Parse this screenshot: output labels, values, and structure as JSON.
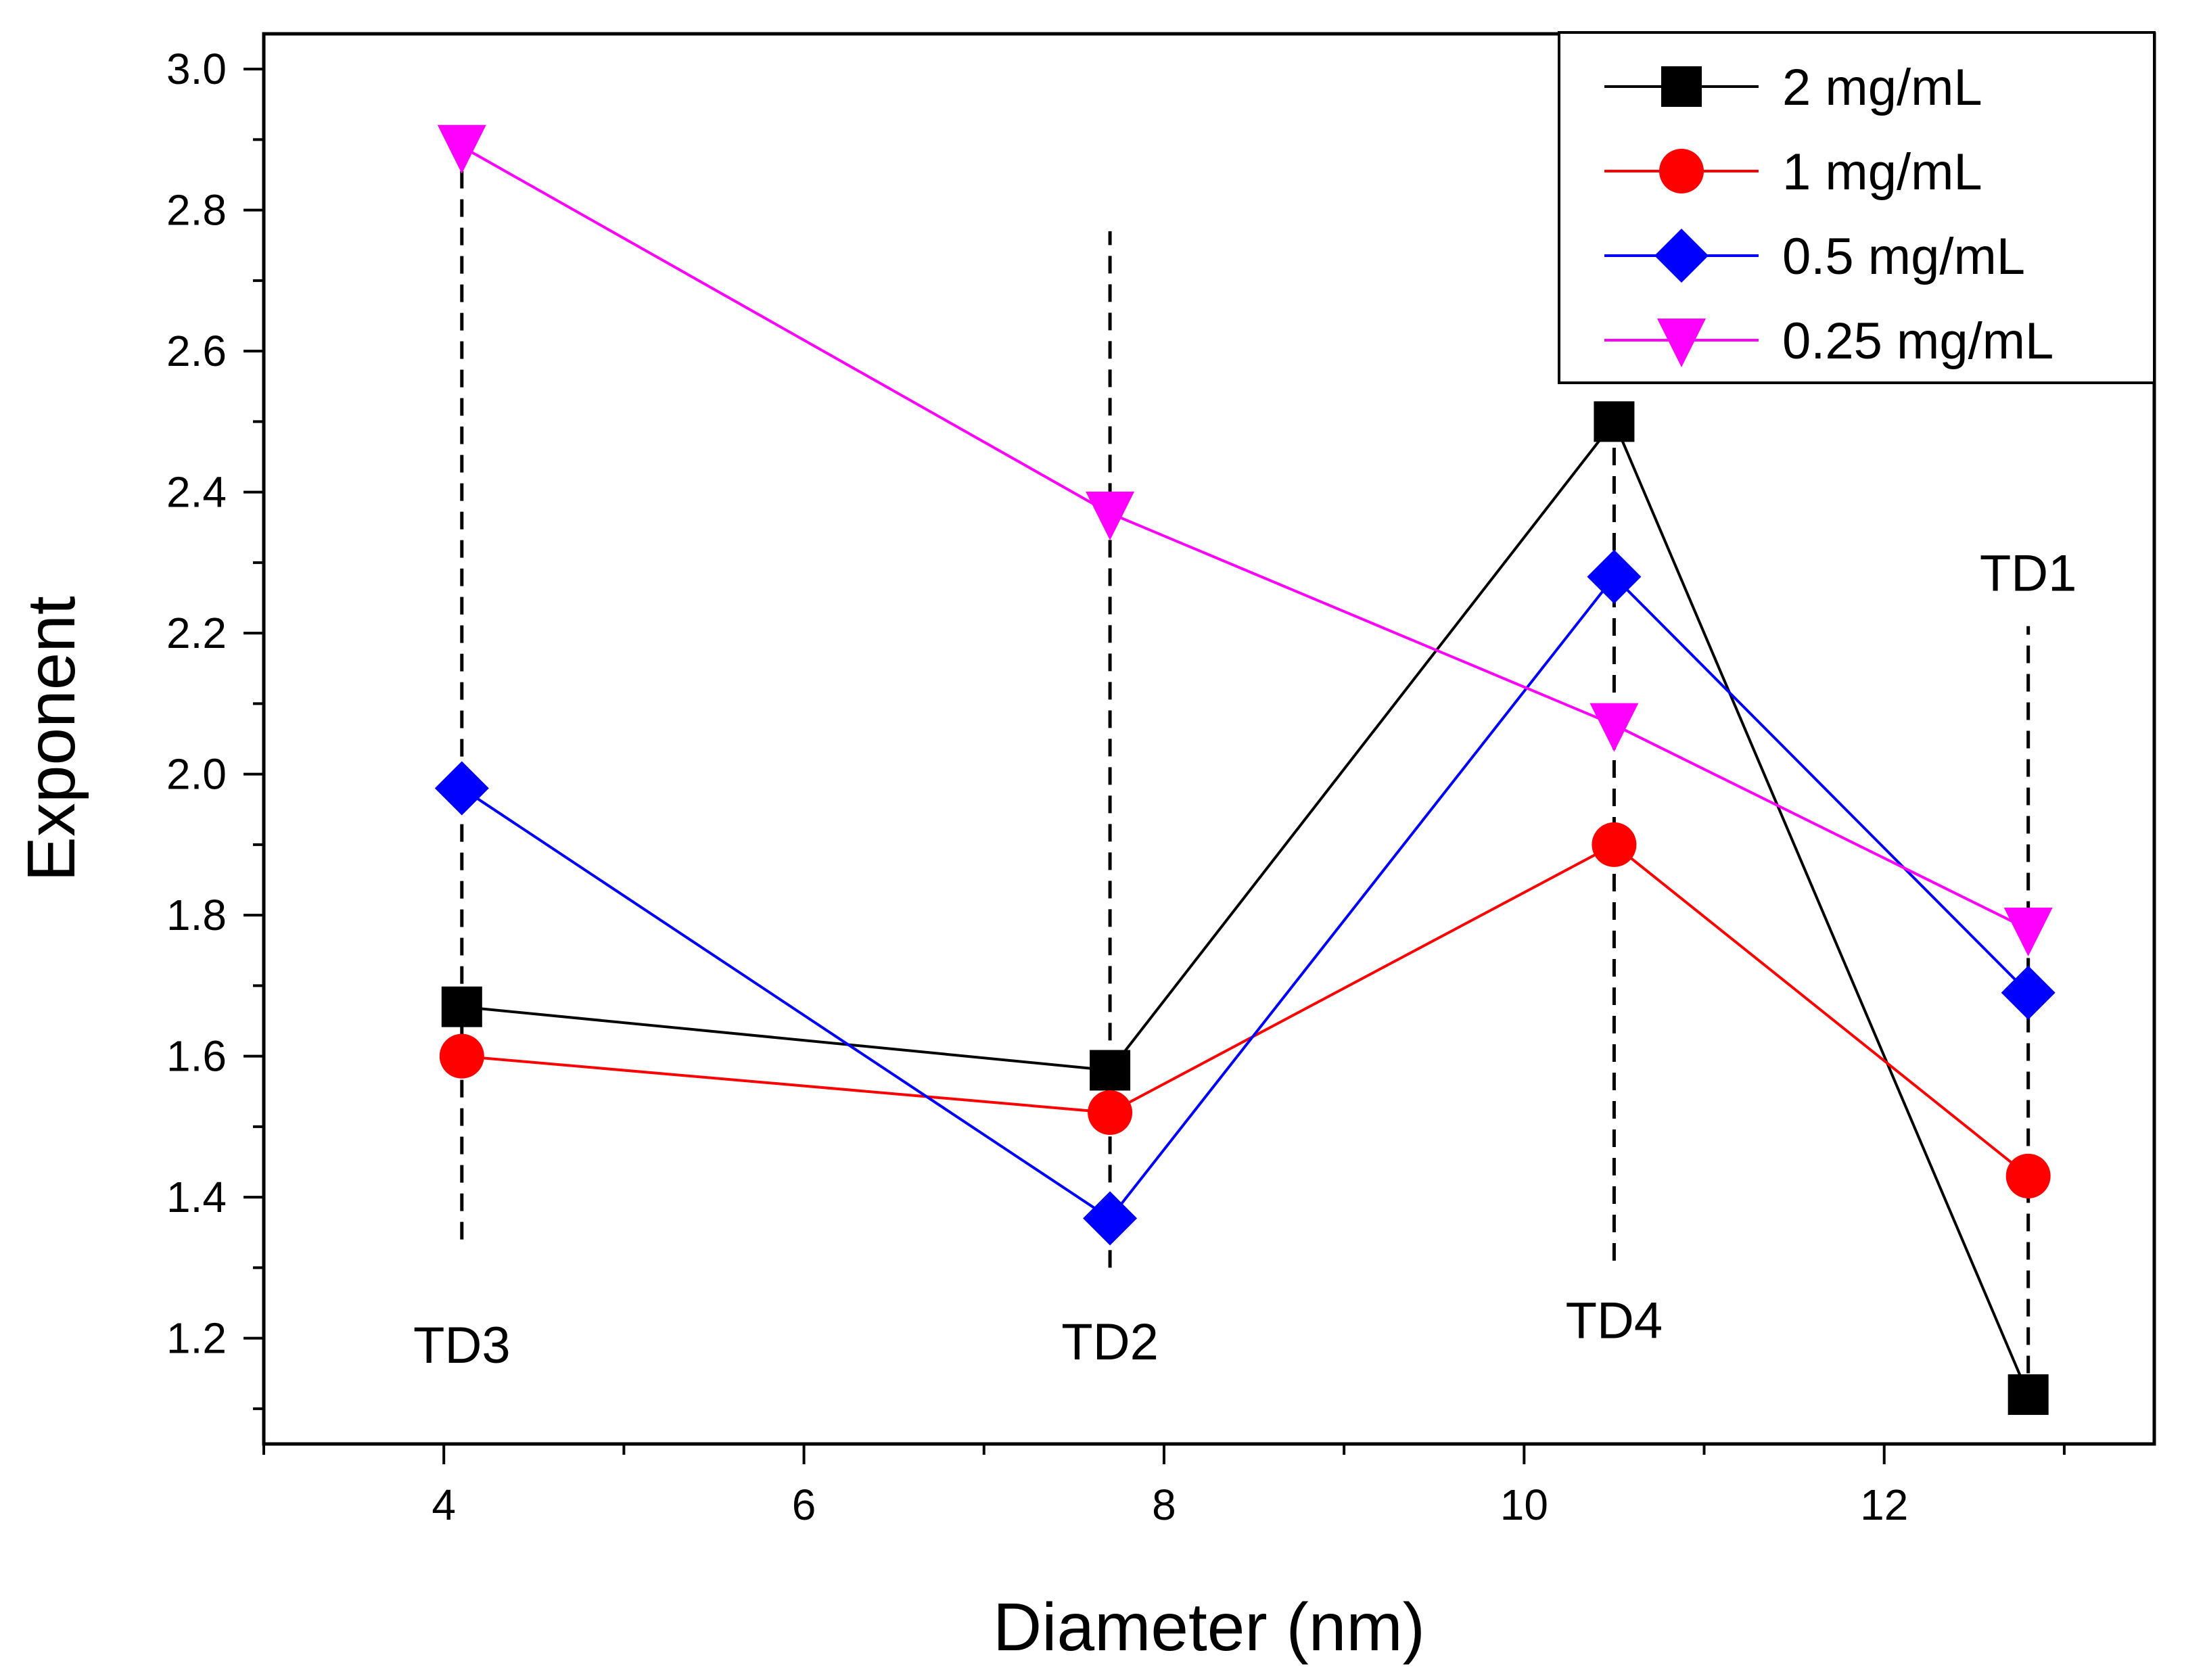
{
  "chart_data": {
    "type": "line",
    "title": "",
    "xlabel": "Diameter (nm)",
    "ylabel": "Exponent",
    "xlim": [
      3.0,
      13.5
    ],
    "ylim": [
      1.05,
      3.05
    ],
    "x_ticks": [
      4,
      6,
      8,
      10,
      12
    ],
    "x_tick_labels": [
      "4",
      "6",
      "8",
      "10",
      "12"
    ],
    "y_ticks": [
      1.2,
      1.4,
      1.6,
      1.8,
      2.0,
      2.2,
      2.4,
      2.6,
      2.8,
      3.0
    ],
    "y_tick_labels": [
      "1.2",
      "1.4",
      "1.6",
      "1.8",
      "2.0",
      "2.2",
      "2.4",
      "2.6",
      "2.8",
      "3.0"
    ],
    "grid": false,
    "legend_position": "top-right",
    "x": [
      4.1,
      7.7,
      10.5,
      12.8
    ],
    "series": [
      {
        "name": "2 mg/mL",
        "color": "#000000",
        "marker": "square",
        "values": [
          1.67,
          1.58,
          2.5,
          1.12
        ]
      },
      {
        "name": "1 mg/mL",
        "color": "#ff0000",
        "marker": "circle",
        "values": [
          1.6,
          1.52,
          1.9,
          1.43
        ]
      },
      {
        "name": "0.5 mg/mL",
        "color": "#0000ff",
        "marker": "diamond",
        "values": [
          1.98,
          1.37,
          2.28,
          1.69
        ]
      },
      {
        "name": "0.25 mg/mL",
        "color": "#ff00ff",
        "marker": "triangle-down",
        "values": [
          2.89,
          2.37,
          2.07,
          1.78
        ]
      }
    ],
    "annotations": [
      {
        "text": "TD3",
        "x": 4.1,
        "label_y": 1.19,
        "line_from": 1.34,
        "line_to": 2.88
      },
      {
        "text": "TD2",
        "x": 7.7,
        "label_y": 1.195,
        "line_from": 1.3,
        "line_to": 2.77
      },
      {
        "text": "TD4",
        "x": 10.5,
        "label_y": 1.225,
        "line_from": 1.31,
        "line_to": 2.52
      },
      {
        "text": "TD1",
        "x": 12.8,
        "label_y": 2.285,
        "line_from": 1.11,
        "line_to": 2.21
      }
    ]
  }
}
